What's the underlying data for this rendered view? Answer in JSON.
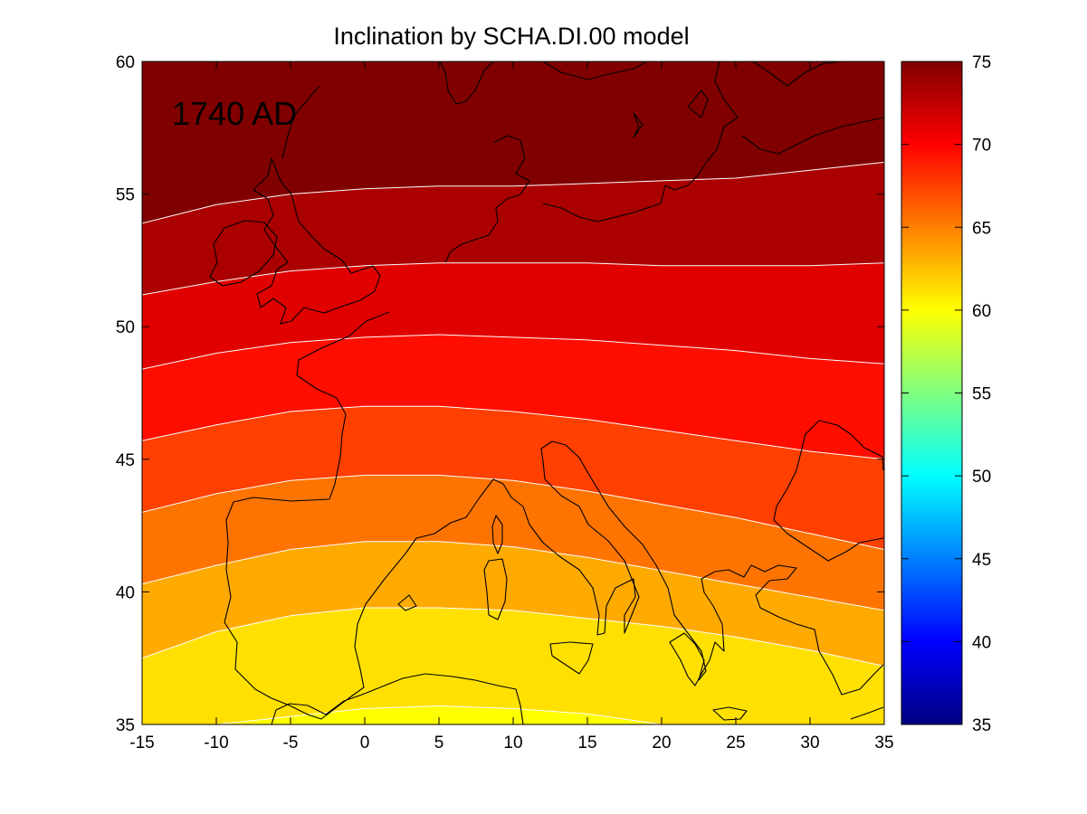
{
  "map": {
    "title": "Inclination by SCHA.DI.00 model",
    "epoch_label": "1740 AD",
    "x_ticks": [
      "-15",
      "-10",
      "-5",
      "0",
      "5",
      "10",
      "15",
      "20",
      "25",
      "30",
      "35"
    ],
    "y_ticks": [
      "35",
      "40",
      "45",
      "50",
      "55",
      "60"
    ],
    "lon_range": [
      -15,
      35
    ],
    "lat_range": [
      35,
      60
    ],
    "contour_levels": [
      60,
      62.5,
      65,
      67.5,
      70,
      72.5,
      75
    ],
    "colorbar": {
      "ticks": [
        "35",
        "40",
        "45",
        "50",
        "55",
        "60",
        "65",
        "70",
        "75"
      ],
      "range": [
        35,
        75
      ],
      "colormap": "jet"
    },
    "band_colors": [
      "#FFFF00",
      "#FFE000",
      "#FFAA00",
      "#FF7400",
      "#FF4000",
      "#FF0E00",
      "#E00000",
      "#AA0000",
      "#800000"
    ],
    "isoline_color": "#FFFFFF",
    "coastline_color": "#000000",
    "region": "Europe and Mediterranean"
  }
}
